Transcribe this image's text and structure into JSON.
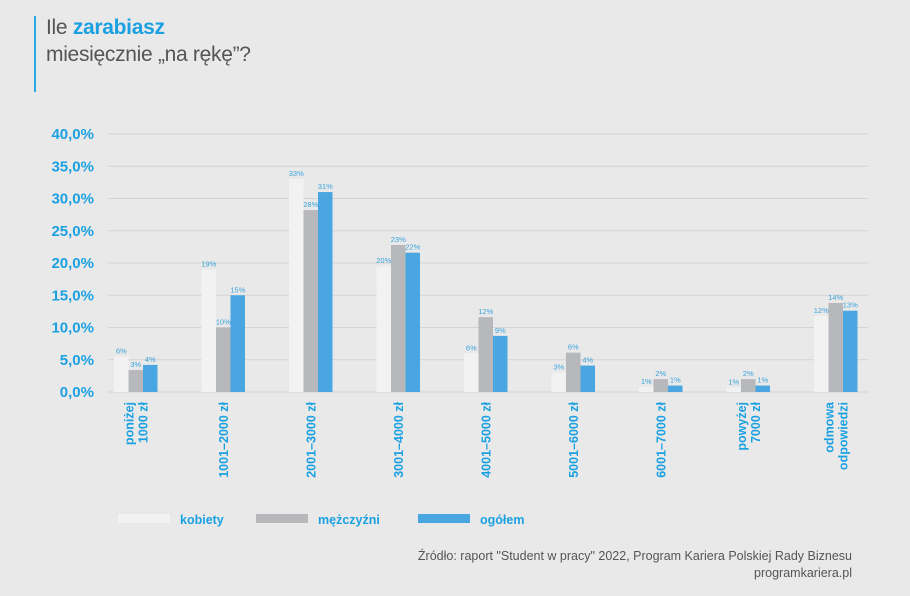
{
  "header": {
    "title_prefix": "Ile ",
    "title_bold": "zarabiasz",
    "title_line2": "miesięcznie „na rękę”?"
  },
  "footer": {
    "source_line1": "Źródło: raport \"Student w pracy\" 2022, Program Kariera Polskiej Rady Biznesu",
    "source_line2": "programkariera.pl"
  },
  "chart_data": {
    "type": "bar",
    "title": "Ile zarabiasz miesięcznie „na rękę”?",
    "categories": [
      [
        "poniżej",
        "1000 zł"
      ],
      [
        "1001–2000 zł"
      ],
      [
        "2001–3000 zł"
      ],
      [
        "3001–4000 zł"
      ],
      [
        "4001–5000 zł"
      ],
      [
        "5001–6000 zł"
      ],
      [
        "6001–7000 zł"
      ],
      [
        "powyżej",
        "7000 zł"
      ],
      [
        "odmowa",
        "odpowiedzi"
      ]
    ],
    "series": [
      {
        "name": "kobiety",
        "color": "#f2f2f2",
        "values": [
          5.5,
          19.0,
          33.0,
          19.5,
          6.0,
          3.0,
          0.8,
          0.7,
          11.8
        ],
        "labels": [
          "6%",
          "19%",
          "33%",
          "20%",
          "6%",
          "3%",
          "1%",
          "1%",
          "12%"
        ]
      },
      {
        "name": "mężczyźni",
        "color": "#b7b8bb",
        "values": [
          3.4,
          10.0,
          28.2,
          22.8,
          11.6,
          6.1,
          2.0,
          2.0,
          13.8
        ],
        "labels": [
          "3%",
          "10%",
          "28%",
          "23%",
          "12%",
          "6%",
          "2%",
          "2%",
          "14%"
        ]
      },
      {
        "name": "ogółem",
        "color": "#4aa6e0",
        "values": [
          4.2,
          15.0,
          31.0,
          21.6,
          8.7,
          4.1,
          1.0,
          1.0,
          12.6
        ],
        "labels": [
          "4%",
          "15%",
          "31%",
          "22%",
          "9%",
          "4%",
          "1%",
          "1%",
          "13%"
        ]
      }
    ],
    "yticks": [
      "0,0%",
      "5,0%",
      "10,0%",
      "15,0%",
      "20,0%",
      "25,0%",
      "30,0%",
      "35,0%",
      "40,0%"
    ],
    "ylim": [
      0,
      40
    ],
    "grid": true,
    "legend": "bottom"
  }
}
